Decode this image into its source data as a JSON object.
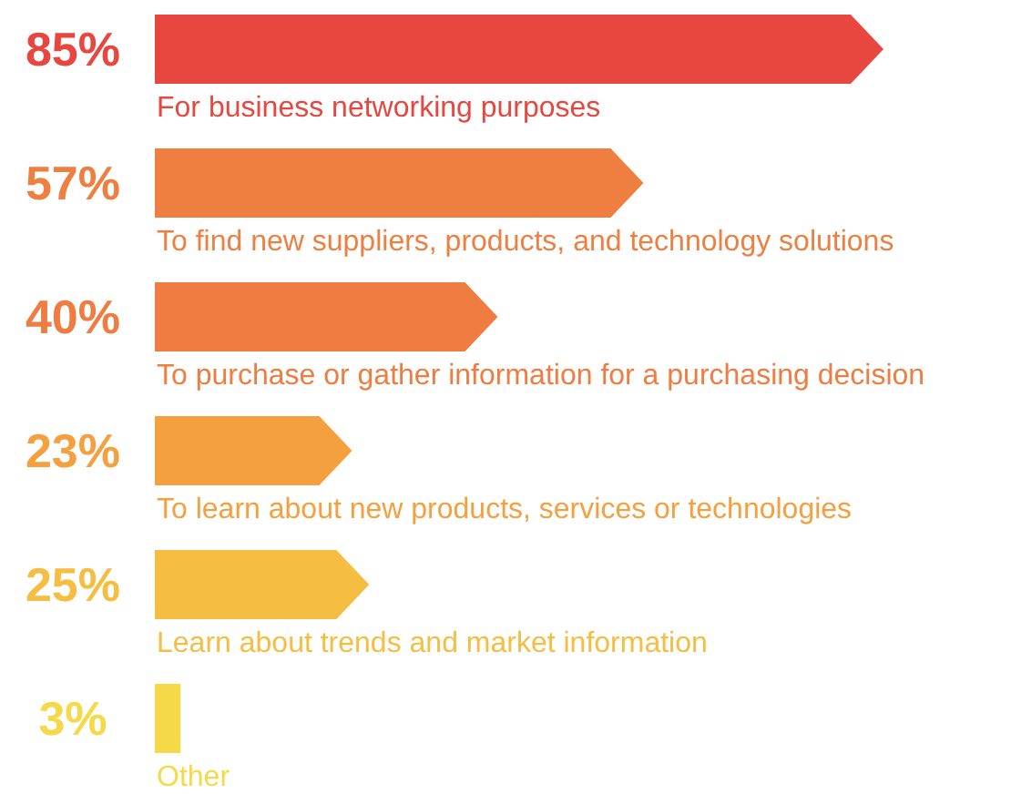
{
  "chart_data": {
    "type": "bar",
    "orientation": "horizontal",
    "categories": [
      "For business networking purposes",
      "To find new suppliers, products, and technology solutions",
      "To purchase or gather information for a purchasing decision",
      "To learn about new products, services or technologies",
      "Learn about trends and market information",
      "Other"
    ],
    "values": [
      85,
      57,
      40,
      23,
      25,
      3
    ],
    "colors": [
      "#e8473f",
      "#ef7f40",
      "#ef7c40",
      "#f5a03f",
      "#f5bd42",
      "#f5d949"
    ],
    "value_labels": [
      "85%",
      "57%",
      "40%",
      "23%",
      "25%",
      "3%"
    ]
  }
}
